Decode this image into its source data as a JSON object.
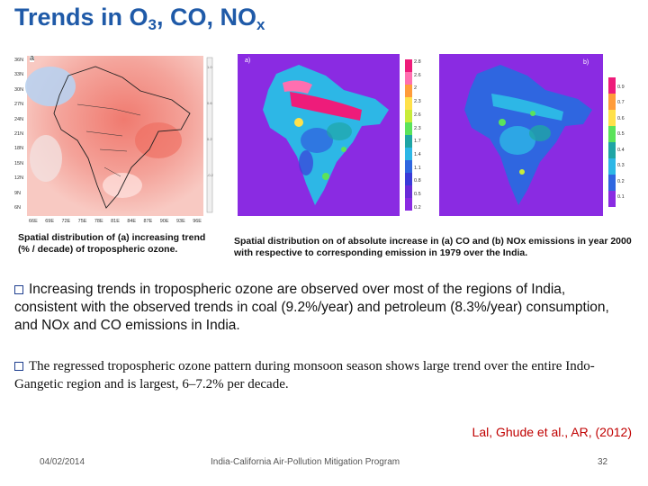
{
  "title": {
    "main": "Trends in O",
    "sub1": "3",
    "mid": ", CO, NO",
    "sub2": "x"
  },
  "figure_left": {
    "panel_label": "a",
    "lat_labels": [
      "36N",
      "33N",
      "30N",
      "27N",
      "24N",
      "21N",
      "18N",
      "15N",
      "12N",
      "9N",
      "6N"
    ],
    "lon_labels": [
      "66E",
      "69E",
      "72E",
      "75E",
      "78E",
      "81E",
      "84E",
      "87E",
      "90E",
      "93E",
      "96E"
    ],
    "caption": "Spatial distribution of (a) increasing trend (% / decade) of tropospheric ozone."
  },
  "figure_a": {
    "panel_label": "a)",
    "scale": [
      "2.8",
      "2.6",
      "2",
      "2.3",
      "2.6",
      "2.3",
      "1.7",
      "1.4",
      "1.1",
      "0.8",
      "0.5",
      "0.2"
    ]
  },
  "figure_b": {
    "panel_label": "b)",
    "scale": [
      "0.9",
      "0.7",
      "0.6",
      "0.5",
      "0.4",
      "0.3",
      "0.2",
      "0.1"
    ]
  },
  "figure_right_caption": "Spatial distribution on of absolute increase in (a) CO and (b) NOx emissions in year 2000 with respective to corresponding emission in 1979 over the India.",
  "bullets": [
    "Increasing trends in tropospheric ozone are observed over most of the regions of India, consistent with the observed trends in coal (9.2%/year) and petroleum (8.3%/year) consumption, and NOx and CO emissions in India.",
    "The regressed tropospheric ozone pattern during monsoon season shows large trend over the entire Indo-Gangetic region and is largest, 6–7.2% per decade."
  ],
  "reference": "Lal, Ghude et al., AR, (2012)",
  "footer": {
    "date": "04/02/2014",
    "program": "India-California Air-Pollution Mitigation Program",
    "page": "32"
  },
  "colors": {
    "title": "#1f5aa8",
    "reference": "#c00000",
    "map_background": "#8a2be2"
  }
}
